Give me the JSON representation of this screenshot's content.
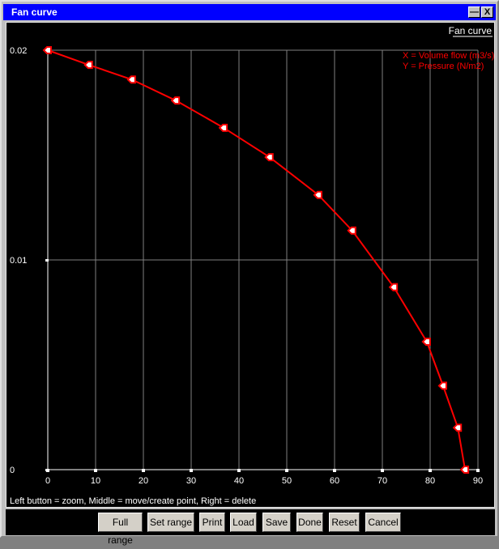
{
  "window": {
    "title": "Fan curve",
    "minimize_label": "_",
    "close_label": "X"
  },
  "plot": {
    "heading": "Fan curve",
    "legend": {
      "x_label": "X = Volume flow (m3/s)",
      "y_label": "Y = Pressure (N/m2)"
    },
    "x_ticks": [
      "0",
      "10",
      "20",
      "30",
      "40",
      "50",
      "60",
      "70",
      "80",
      "90"
    ],
    "y_ticks": [
      "0",
      "0.01",
      "0.02"
    ],
    "hint": "Left button = zoom, Middle = move/create point, Right = delete",
    "colors": {
      "background": "#000000",
      "curve": "#ff0000",
      "grid": "#808080",
      "axis": "#ffffff",
      "marker_fill": "#ffffff"
    }
  },
  "buttons": [
    {
      "label": "Full range"
    },
    {
      "label": "Set range"
    },
    {
      "label": "Print"
    },
    {
      "label": "Load"
    },
    {
      "label": "Save"
    },
    {
      "label": "Done"
    },
    {
      "label": "Reset"
    },
    {
      "label": "Cancel"
    }
  ],
  "chart_data": {
    "type": "line",
    "title": "Fan curve",
    "xlabel": "Volume flow (m3/s)",
    "ylabel": "Pressure (N/m2)",
    "xlim": [
      0,
      90
    ],
    "ylim": [
      0,
      0.02
    ],
    "grid": true,
    "legend_position": "top-right",
    "series": [
      {
        "name": "Fan curve",
        "x": [
          0,
          8.6,
          17.6,
          26.8,
          36.8,
          46.4,
          56.6,
          63.7,
          72.4,
          79.3,
          82.7,
          85.8,
          87.3
        ],
        "y": [
          0.02,
          0.0193,
          0.0186,
          0.0176,
          0.0163,
          0.0149,
          0.0131,
          0.0114,
          0.0087,
          0.0061,
          0.004,
          0.002,
          0.0
        ]
      }
    ]
  }
}
